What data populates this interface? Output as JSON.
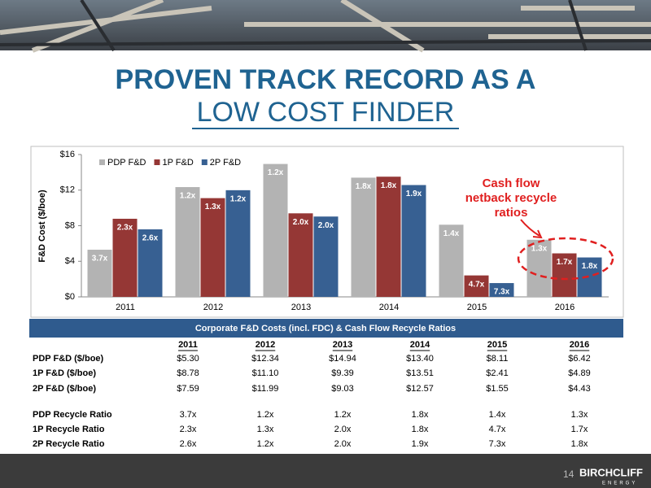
{
  "header": {
    "title_line1": "PROVEN TRACK RECORD AS A",
    "title_line2": "LOW COST FINDER"
  },
  "chart_data": {
    "type": "bar",
    "categories": [
      "2011",
      "2012",
      "2013",
      "2014",
      "2015",
      "2016"
    ],
    "ylabel": "F&D Cost ($/boe)",
    "ylim": [
      0,
      16
    ],
    "yticks": [
      {
        "value": 0,
        "label": "$0"
      },
      {
        "value": 4,
        "label": "$4"
      },
      {
        "value": 8,
        "label": "$8"
      },
      {
        "value": 12,
        "label": "$12"
      },
      {
        "value": 16,
        "label": "$16"
      }
    ],
    "legend": "top-left",
    "series": [
      {
        "name": "PDP F&D",
        "color": "#b3b3b3",
        "values": [
          5.3,
          12.34,
          14.94,
          13.4,
          8.11,
          6.42
        ],
        "labels": [
          "3.7x",
          "1.2x",
          "1.2x",
          "1.8x",
          "1.4x",
          "1.3x"
        ]
      },
      {
        "name": "1P F&D",
        "color": "#953735",
        "values": [
          8.78,
          11.1,
          9.39,
          13.51,
          2.41,
          4.89
        ],
        "labels": [
          "2.3x",
          "1.3x",
          "2.0x",
          "1.8x",
          "4.7x",
          "1.7x"
        ]
      },
      {
        "name": "2P F&D",
        "color": "#376092",
        "values": [
          7.59,
          11.99,
          9.03,
          12.57,
          1.55,
          4.43
        ],
        "labels": [
          "2.6x",
          "1.2x",
          "2.0x",
          "1.9x",
          "7.3x",
          "1.8x"
        ]
      }
    ],
    "annotation": [
      "Cash flow",
      "netback recycle",
      "ratios"
    ]
  },
  "table": {
    "title": "Corporate F&D Costs (incl. FDC) & Cash Flow Recycle Ratios",
    "columns": [
      "2011",
      "2012",
      "2013",
      "2014",
      "2015",
      "2016"
    ],
    "rows": [
      [
        "PDP F&D ($/boe)",
        "$5.30",
        "$12.34",
        "$14.94",
        "$13.40",
        "$8.11",
        "$6.42"
      ],
      [
        "1P F&D ($/boe)",
        "$8.78",
        "$11.10",
        "$9.39",
        "$13.51",
        "$2.41",
        "$4.89"
      ],
      [
        "2P F&D ($/boe)",
        "$7.59",
        "$11.99",
        "$9.03",
        "$12.57",
        "$1.55",
        "$4.43"
      ],
      [
        "PDP Recycle Ratio",
        "3.7x",
        "1.2x",
        "1.2x",
        "1.8x",
        "1.4x",
        "1.3x"
      ],
      [
        "1P Recycle Ratio",
        "2.3x",
        "1.3x",
        "2.0x",
        "1.8x",
        "4.7x",
        "1.7x"
      ],
      [
        "2P Recycle Ratio",
        "2.6x",
        "1.2x",
        "2.0x",
        "1.9x",
        "7.3x",
        "1.8x"
      ]
    ]
  },
  "footer": {
    "page": "14",
    "logo": "BIRCHCLIFF",
    "logo_sub": "ENERGY"
  }
}
